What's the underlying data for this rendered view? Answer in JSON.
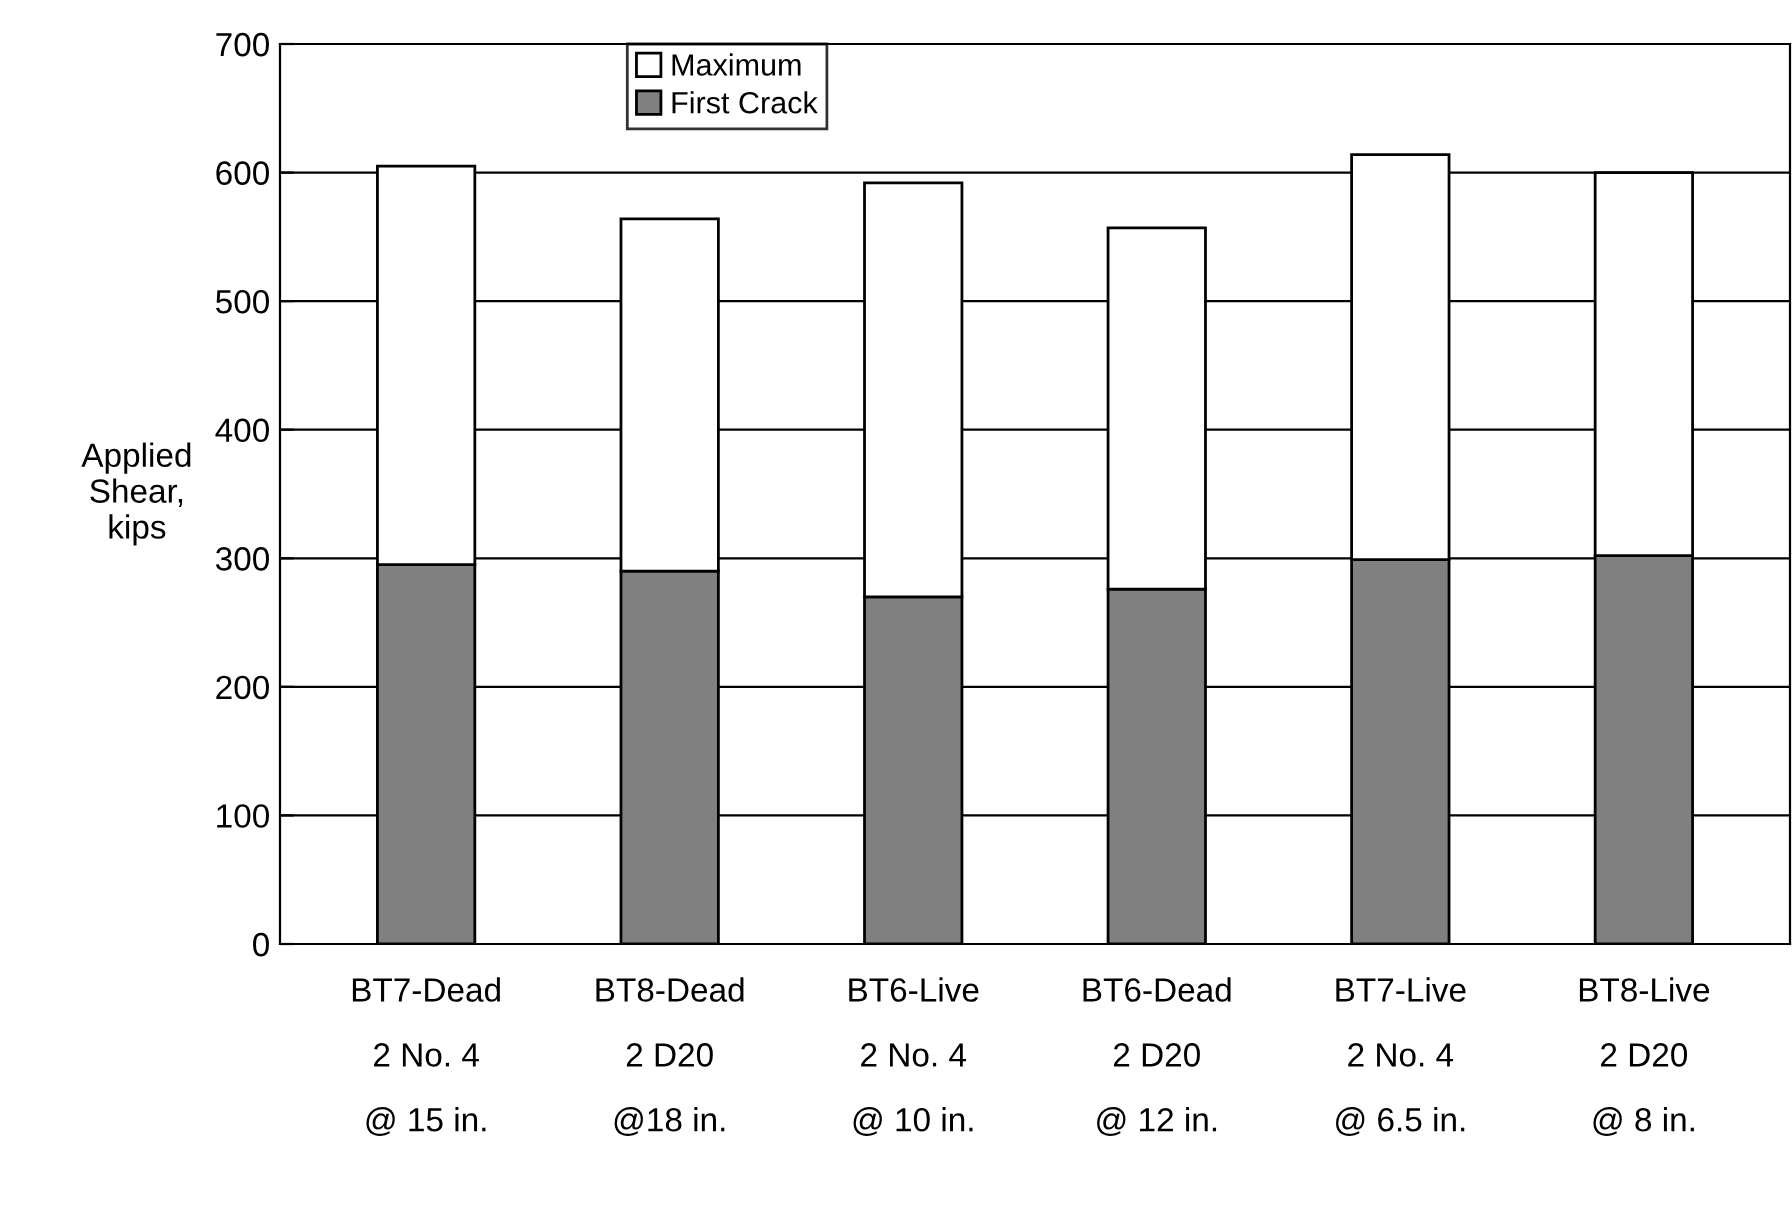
{
  "chart_data": {
    "type": "bar",
    "stacked": true,
    "ylabel": "Applied\nShear,\nkips",
    "categories": [
      "BT7-Dead\n2 No. 4\n@ 15 in.",
      "BT8-Dead\n2 D20\n@18 in.",
      "BT6-Live\n2 No. 4\n@ 10 in.",
      "BT6-Dead\n2 D20\n@ 12 in.",
      "BT7-Live\n2 No. 4\n@ 6.5 in.",
      "BT8-Live\n2 D20\n@ 8 in."
    ],
    "series": [
      {
        "name": "First Crack",
        "color": "#808080",
        "values": [
          295,
          290,
          270,
          276,
          299,
          302
        ]
      },
      {
        "name": "Maximum",
        "color": "#ffffff",
        "values": [
          310,
          274,
          322,
          281,
          315,
          298
        ]
      }
    ],
    "ylim": [
      0,
      700
    ],
    "yticks": [
      0,
      100,
      200,
      300,
      400,
      500,
      600,
      700
    ],
    "grid": "y",
    "legend": "top"
  }
}
